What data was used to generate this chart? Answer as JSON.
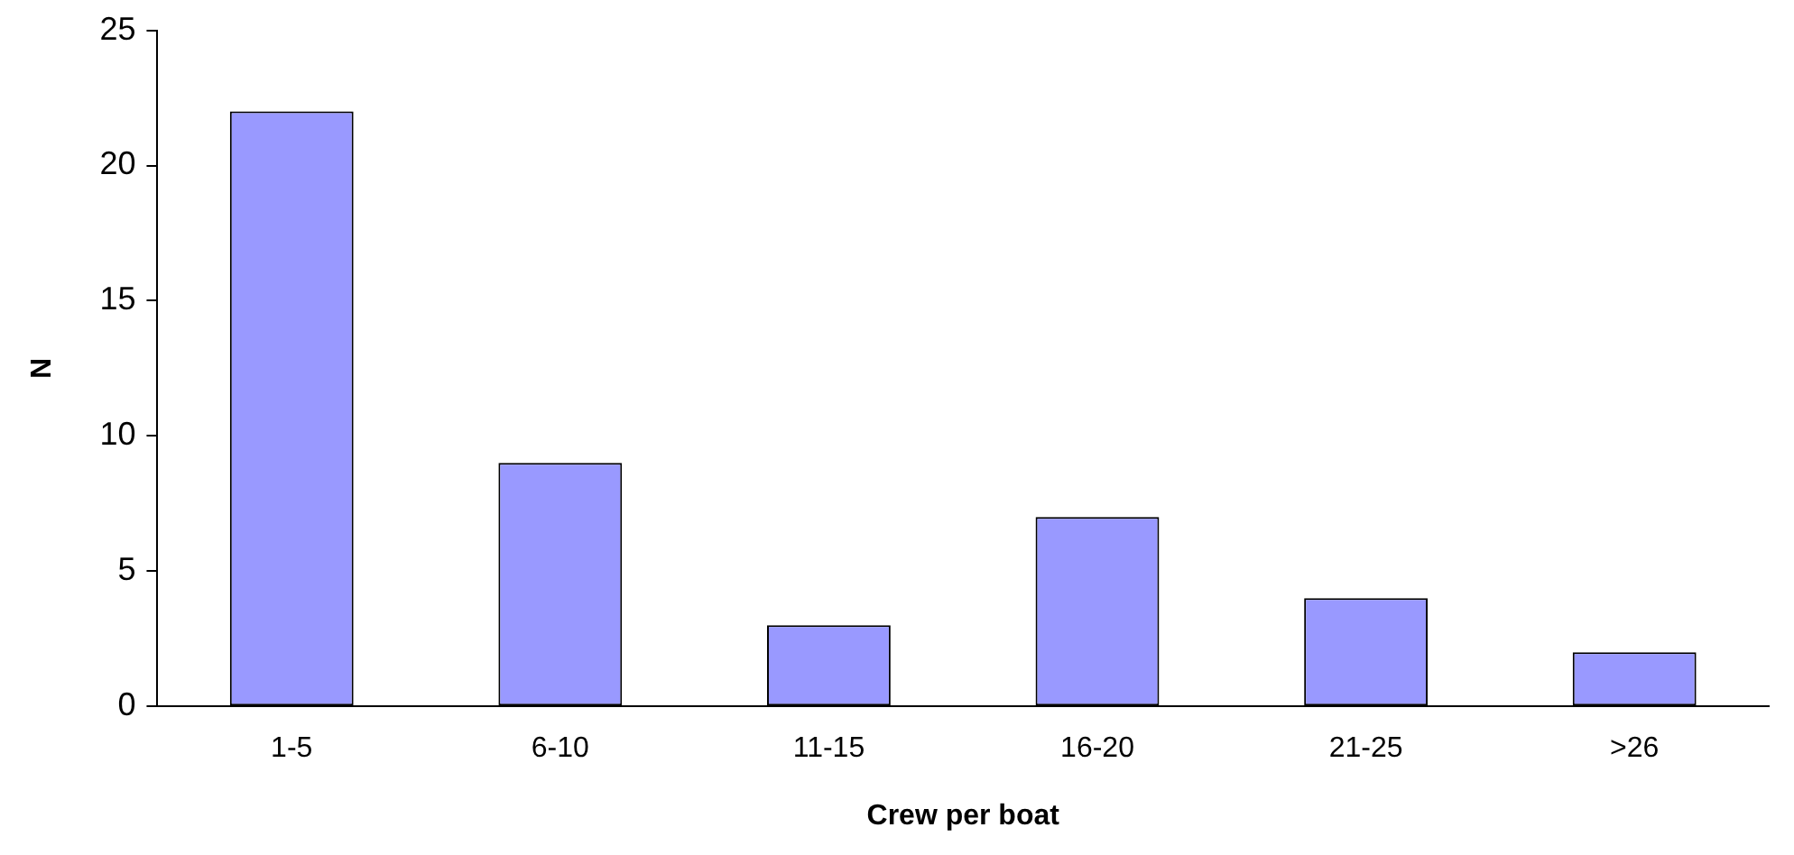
{
  "chart_data": {
    "type": "bar",
    "xlabel": "Crew per boat",
    "ylabel": "N",
    "categories": [
      "1-5",
      "6-10",
      "11-15",
      "16-20",
      "21-25",
      ">26"
    ],
    "values": [
      22,
      9,
      3,
      7,
      4,
      2
    ],
    "color": "#9999ff",
    "ylim": [
      0,
      25
    ],
    "yticks": [
      0,
      5,
      10,
      15,
      20,
      25
    ],
    "grid": false,
    "legend": false
  }
}
